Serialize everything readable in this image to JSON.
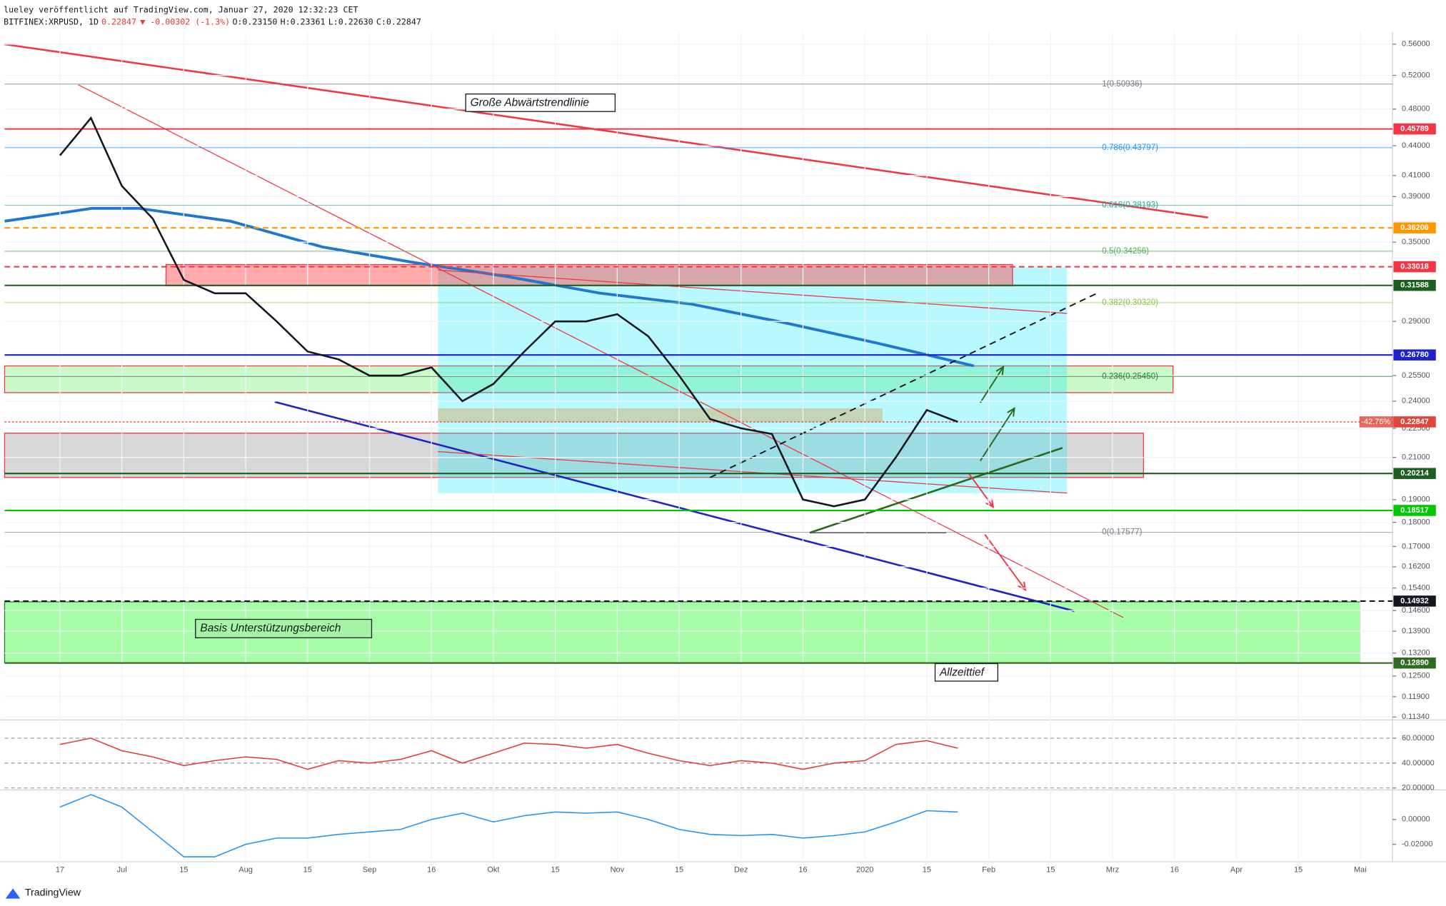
{
  "header": {
    "publisher": "lueley veröffentlicht auf TradingView.com, Januar 27, 2020 12:32:23 CET",
    "symbol": "BITFINEX:XRPUSD, 1D",
    "price": "0.22847",
    "change": "▼ -0.00302 (-1.3%)",
    "open": "O:0.23150",
    "high": "H:0.23361",
    "low": "L:0.22630",
    "close": "C:0.22847"
  },
  "footer": {
    "brand": "TradingView"
  },
  "chart_data": [
    {
      "type": "line",
      "log_scale": true,
      "grid": true,
      "color": "#131722",
      "categories": [
        "17",
        null,
        "Jul",
        null,
        "15",
        null,
        "Aug",
        null,
        "15",
        null,
        "Sep",
        null,
        "16",
        null,
        "Okt",
        null,
        "15",
        null,
        "Nov",
        null,
        "15",
        null,
        "Dez",
        null,
        "16",
        null,
        "2020",
        null,
        "15",
        null,
        "Feb",
        null,
        "15",
        null,
        "Mrz",
        null,
        "16",
        null,
        "Apr",
        null,
        "15",
        null,
        "Mai"
      ],
      "values": [
        0.43,
        0.47,
        0.4,
        0.37,
        0.32,
        0.31,
        0.31,
        0.29,
        0.27,
        0.265,
        0.255,
        0.255,
        0.26,
        0.24,
        0.25,
        0.27,
        0.29,
        0.29,
        0.295,
        0.28,
        0.255,
        0.23,
        0.225,
        0.222,
        0.19,
        0.187,
        0.19,
        0.21,
        0.235,
        0.22847,
        null,
        null,
        null,
        null,
        null,
        null,
        null,
        null,
        null,
        null,
        null,
        null,
        null
      ],
      "ylim": [
        0.1129,
        0.576
      ],
      "yticks": [
        {
          "value": 0.56,
          "label": "0.56000"
        },
        {
          "value": 0.52,
          "label": "0.52000"
        },
        {
          "value": 0.48,
          "label": "0.48000"
        },
        {
          "value": 0.44,
          "label": "0.44000"
        },
        {
          "value": 0.41,
          "label": "0.41000"
        },
        {
          "value": 0.39,
          "label": "0.39000"
        },
        {
          "value": 0.35,
          "label": "0.35000"
        },
        {
          "value": 0.29,
          "label": "0.29000"
        },
        {
          "value": 0.255,
          "label": "0.25500"
        },
        {
          "value": 0.24,
          "label": "0.24000"
        },
        {
          "value": 0.225,
          "label": "0.22500"
        },
        {
          "value": 0.21,
          "label": "0.21000"
        },
        {
          "value": 0.19,
          "label": "0.19000"
        },
        {
          "value": 0.18,
          "label": "0.18000"
        },
        {
          "value": 0.17,
          "label": "0.17000"
        },
        {
          "value": 0.162,
          "label": "0.16200"
        },
        {
          "value": 0.154,
          "label": "0.15400"
        },
        {
          "value": 0.146,
          "label": "0.14600"
        },
        {
          "value": 0.139,
          "label": "0.13900"
        },
        {
          "value": 0.132,
          "label": "0.13200"
        },
        {
          "value": 0.125,
          "label": "0.12500"
        },
        {
          "value": 0.119,
          "label": "0.11900"
        },
        {
          "value": 0.1134,
          "label": "0.11340"
        }
      ],
      "levels": [
        {
          "value": 0.45789,
          "label": "0.45789",
          "color": "#f23645",
          "style": "solid"
        },
        {
          "value": 0.36206,
          "label": "0.36206",
          "color": "#ff9800",
          "style": "dashed"
        },
        {
          "value": 0.33018,
          "label": "0.33018",
          "color": "#f23645",
          "style": "dashed"
        },
        {
          "value": 0.31588,
          "label": "0.31588",
          "color": "#1b5e20",
          "style": "solid"
        },
        {
          "value": 0.2678,
          "label": "0.26780",
          "color": "#1e22c8",
          "style": "solid"
        },
        {
          "value": 0.22847,
          "label": "0.22847",
          "color": "#e0443a",
          "style": "dotted"
        },
        {
          "value": 0.20214,
          "label": "0.20214",
          "color": "#1b5e20",
          "style": "solid"
        },
        {
          "value": 0.18517,
          "label": "0.18517",
          "color": "#00c800",
          "style": "solid"
        },
        {
          "value": 0.14932,
          "label": "0.14932",
          "color": "#131722",
          "style": "dashed"
        },
        {
          "value": 0.1289,
          "label": "0.12890",
          "color": "#2e6b1e",
          "style": "solid"
        }
      ],
      "change_label": "-42.76%",
      "fibs": [
        {
          "value": 0.50936,
          "label": "1(0.50936)",
          "color": "#787b86"
        },
        {
          "value": 0.43797,
          "label": "0.786(0.43797)",
          "color": "#2196f3"
        },
        {
          "value": 0.38193,
          "label": "0.618(0.38193)",
          "color": "#26a69a"
        },
        {
          "value": 0.34256,
          "label": "0.5(0.34256)",
          "color": "#4caf50"
        },
        {
          "value": 0.3032,
          "label": "0.382(0.30320)",
          "color": "#8bc34a"
        },
        {
          "value": 0.2545,
          "label": "0.236(0.25450)",
          "color": "#2e7d32"
        },
        {
          "value": 0.17577,
          "label": "0(0.17577)",
          "color": "#787b86"
        }
      ],
      "annotations": [
        "Große Abwärtstrendlinie",
        "Basis Unterstützungsbereich",
        "Allzeittief"
      ]
    },
    {
      "type": "line",
      "grid": true,
      "color": "#e53935",
      "values": [
        55,
        60,
        50,
        45,
        38,
        42,
        45,
        43,
        35,
        42,
        40,
        43,
        50,
        40,
        48,
        56,
        55,
        52,
        55,
        48,
        42,
        38,
        42,
        40,
        35,
        40,
        42,
        55,
        58,
        52,
        null,
        null,
        null,
        null,
        null,
        null,
        null,
        null,
        null,
        null,
        null,
        null,
        null
      ],
      "ylim": [
        17.8,
        74
      ],
      "yticks": [
        {
          "value": 60,
          "label": "60.00000"
        },
        {
          "value": 40,
          "label": "40.00000"
        },
        {
          "value": 20,
          "label": "20.00000"
        }
      ]
    },
    {
      "type": "line",
      "grid": false,
      "color": "#2196f3",
      "values": [
        0.01,
        0.02,
        0.01,
        -0.01,
        -0.03,
        -0.03,
        -0.02,
        -0.015,
        -0.015,
        -0.012,
        -0.01,
        -0.008,
        0,
        0.005,
        -0.002,
        0.003,
        0.006,
        0.005,
        0.006,
        0,
        -0.008,
        -0.012,
        -0.013,
        -0.012,
        -0.015,
        -0.013,
        -0.01,
        -0.002,
        0.007,
        0.006,
        null,
        null,
        null,
        null,
        null,
        null,
        null,
        null,
        null,
        null,
        null,
        null,
        null
      ],
      "ylim": [
        -0.034,
        0.023
      ],
      "yticks": [
        {
          "value": 0,
          "label": "0.00000"
        },
        {
          "value": -0.02,
          "label": "-0.02000"
        }
      ]
    }
  ]
}
